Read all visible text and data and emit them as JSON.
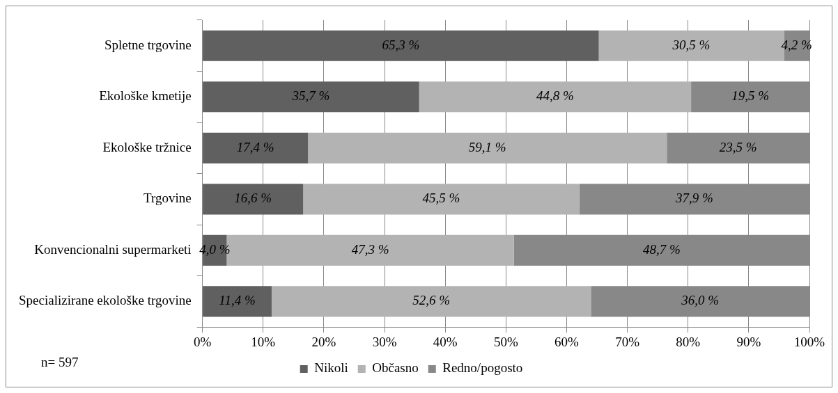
{
  "chart_data": {
    "type": "bar",
    "orientation": "horizontal",
    "stacked": true,
    "categories": [
      "Spletne trgovine",
      "Ekološke kmetije",
      "Ekološke tržnice",
      "Trgovine",
      "Konvencionalni supermarketi",
      "Specializirane ekološke trgovine"
    ],
    "series": [
      {
        "name": "Nikoli",
        "color": "#606060",
        "values": [
          65.3,
          35.7,
          17.4,
          16.6,
          4.0,
          11.4
        ],
        "value_labels": [
          "65,3 %",
          "35,7 %",
          "17,4 %",
          "16,6 %",
          "4,0 %",
          "11,4 %"
        ]
      },
      {
        "name": "Občasno",
        "color": "#b3b3b3",
        "values": [
          30.5,
          44.8,
          59.1,
          45.5,
          47.3,
          52.6
        ],
        "value_labels": [
          "30,5 %",
          "44,8 %",
          "59,1 %",
          "45,5 %",
          "47,3 %",
          "52,6 %"
        ]
      },
      {
        "name": "Redno/pogosto",
        "color": "#888888",
        "values": [
          4.2,
          19.5,
          23.5,
          37.9,
          48.7,
          36.0
        ],
        "value_labels": [
          "4,2 %",
          "19,5 %",
          "23,5 %",
          "37,9 %",
          "48,7 %",
          "36,0 %"
        ]
      }
    ],
    "xlim": [
      0,
      100
    ],
    "xticks": [
      {
        "value": 0,
        "label": "0%"
      },
      {
        "value": 10,
        "label": "10%"
      },
      {
        "value": 20,
        "label": "20%"
      },
      {
        "value": 30,
        "label": "30%"
      },
      {
        "value": 40,
        "label": "40%"
      },
      {
        "value": 50,
        "label": "50%"
      },
      {
        "value": 60,
        "label": "60%"
      },
      {
        "value": 70,
        "label": "70%"
      },
      {
        "value": 80,
        "label": "80%"
      },
      {
        "value": 90,
        "label": "90%"
      },
      {
        "value": 100,
        "label": "100%"
      }
    ],
    "grid": "x",
    "legend": "bottom",
    "annotations": [
      "n= 597"
    ]
  }
}
